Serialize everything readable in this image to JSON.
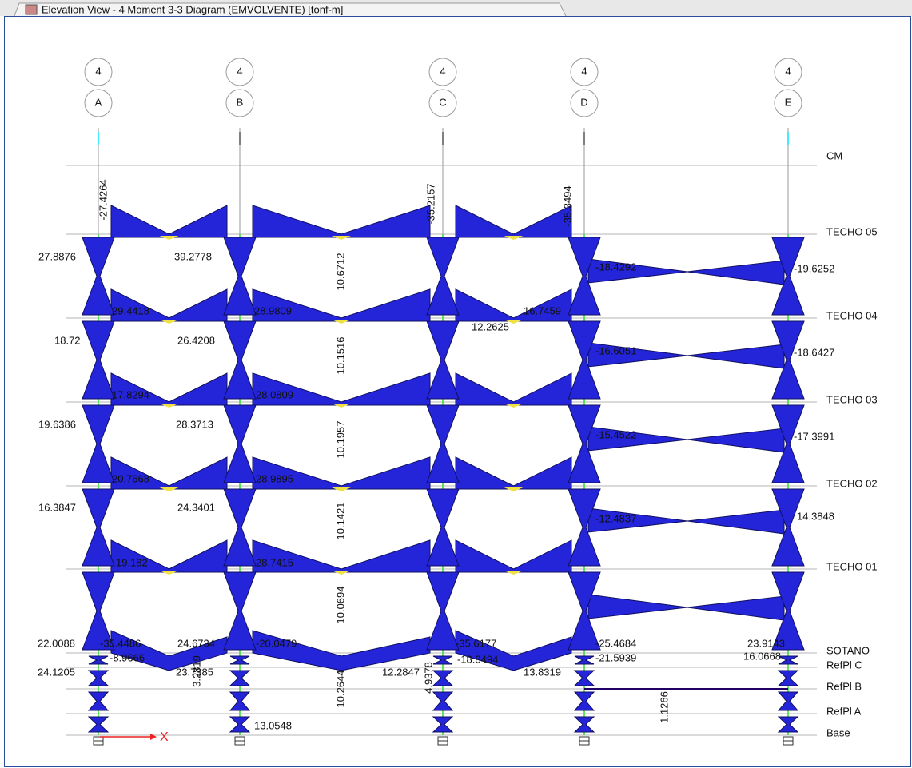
{
  "window": {
    "tab_title": "Elevation View - 4   Moment 3-3 Diagram   (EMVOLVENTE)  [tonf-m]"
  },
  "grid": {
    "bubbles": [
      {
        "number": "4",
        "letter": "A"
      },
      {
        "number": "4",
        "letter": "B"
      },
      {
        "number": "4",
        "letter": "C"
      },
      {
        "number": "4",
        "letter": "D"
      },
      {
        "number": "4",
        "letter": "E"
      }
    ]
  },
  "levels": [
    "CM",
    "TECHO 05",
    "TECHO 04",
    "TECHO 03",
    "TECHO 02",
    "TECHO 01",
    "SOTANO",
    "RefPl C",
    "RefPl B",
    "RefPl A",
    "Base"
  ],
  "labels": [
    "27.8876",
    "39.2778",
    "-18.4292",
    "-19.6252",
    "29.4418",
    "28.9809",
    "16.7459",
    "12.2625",
    "18.72",
    "26.4208",
    "-16.6051",
    "-18.6427",
    "17.8294",
    "28.0809",
    "19.6386",
    "28.3713",
    "-15.4522",
    "-17.3991",
    "20.7668",
    "28.9895",
    "16.3847",
    "24.3401",
    "-12.4837",
    "14.3848",
    "19.182",
    "28.7415",
    "22.0088",
    "-35.4486",
    "24.6734",
    "-20.0479",
    "-35.6177",
    "-25.4684",
    "23.9143",
    "-8.9666",
    "-18.8494",
    "-21.5939",
    "16.0668",
    "24.1205",
    "23.7385",
    "12.2847",
    "13.8319",
    "13.0548"
  ],
  "rotated_labels": [
    "-27.4264",
    "-35.2157",
    "-35.3494",
    "10.6712",
    "10.1516",
    "10.1957",
    "10.1421",
    "10.0694",
    "10.2644",
    "4.9378",
    "1.1266",
    "3.2819"
  ],
  "axis": {
    "x_label": "X"
  }
}
